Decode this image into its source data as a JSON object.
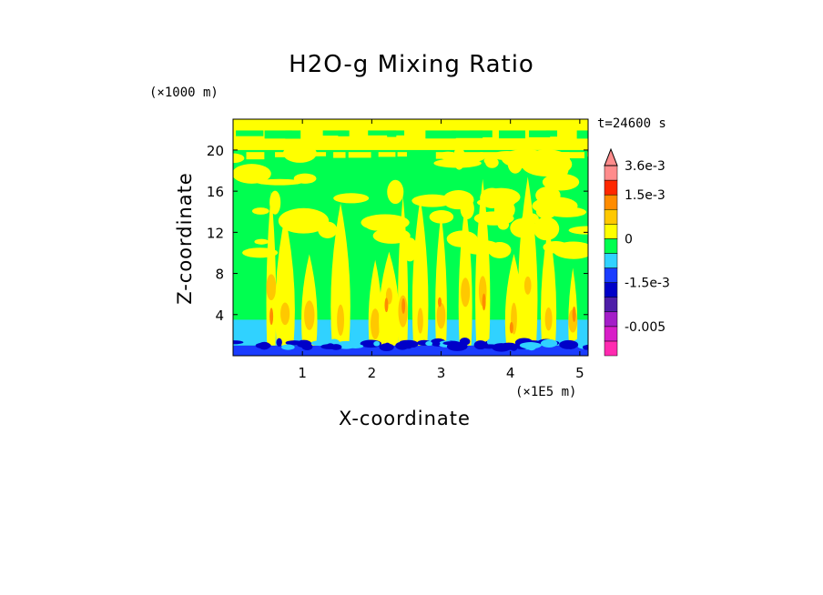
{
  "chart_data": {
    "type": "heatmap",
    "title": "H2O-g Mixing Ratio",
    "xlabel": "X-coordinate",
    "ylabel": "Z-coordinate",
    "x_unit": "(×1E5 m)",
    "y_unit": "(×1000 m)",
    "time_label": "t=24600 s",
    "xlim": [
      0,
      5.12
    ],
    "ylim": [
      0,
      23
    ],
    "x_ticks": [
      1,
      2,
      3,
      4,
      5
    ],
    "y_ticks": [
      4,
      8,
      12,
      16,
      20
    ],
    "colorbar": {
      "levels": [
        -0.009,
        -0.007,
        -0.005,
        -0.0035,
        -0.0025,
        -0.0015,
        -0.001,
        -0.0005,
        0,
        0.0005,
        0.001,
        0.0015,
        0.0025,
        0.0036,
        0.0045
      ],
      "colors": [
        "#ff2ab0",
        "#d81ec8",
        "#a41ec8",
        "#4e1ea8",
        "#0000c8",
        "#1a3cff",
        "#30d2ff",
        "#00ff50",
        "#ffff00",
        "#ffc800",
        "#ff8c00",
        "#ff2800",
        "#ff8c8c"
      ],
      "labels": [
        {
          "text": "3.6e-3",
          "value": 0.0036
        },
        {
          "text": "1.5e-3",
          "value": 0.0015
        },
        {
          "text": "0",
          "value": 0
        },
        {
          "text": "-1.5e-3",
          "value": -0.0015
        },
        {
          "text": "-0.005",
          "value": -0.005
        }
      ],
      "extend_max": true
    },
    "field_layers": [
      {
        "name": "background",
        "z_range": [
          0,
          23
        ],
        "color": "#00ff50"
      },
      {
        "name": "surface",
        "z_range": [
          0,
          1
        ],
        "color": "#1a3cff"
      },
      {
        "name": "lower",
        "z_range": [
          1,
          3.5
        ],
        "color": "#30d2ff"
      },
      {
        "name": "upper",
        "z_range": [
          20,
          23
        ],
        "color": "#ffff00"
      }
    ],
    "plumes_x": [
      0.55,
      0.75,
      1.1,
      1.55,
      2.05,
      2.25,
      2.45,
      2.7,
      3.0,
      3.35,
      3.6,
      4.05,
      4.25,
      4.55,
      4.9
    ]
  }
}
